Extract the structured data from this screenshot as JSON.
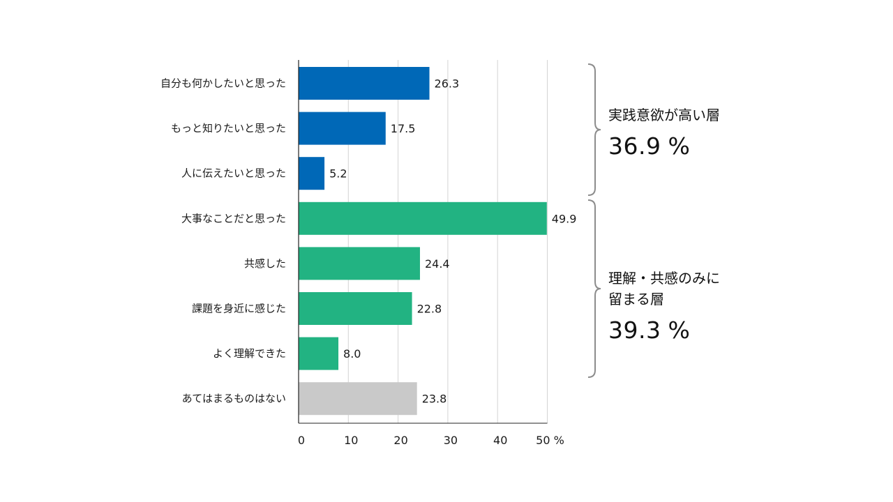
{
  "chart_data": {
    "type": "bar",
    "orientation": "horizontal",
    "categories": [
      "自分も何かしたいと思った",
      "もっと知りたいと思った",
      "人に伝えたいと思った",
      "大事なことだと思った",
      "共感した",
      "課題を身近に感じた",
      "よく理解できた",
      "あてはまるものはない"
    ],
    "values": [
      26.3,
      17.5,
      5.2,
      49.9,
      24.4,
      22.8,
      8.0,
      23.8
    ],
    "value_labels": [
      "26.3",
      "17.5",
      "5.2",
      "49.9",
      "24.4",
      "22.8",
      "8.0",
      "23.8"
    ],
    "bar_colors": [
      "#0068b7",
      "#0068b7",
      "#0068b7",
      "#22b382",
      "#22b382",
      "#22b382",
      "#22b382",
      "#c9c9c9"
    ],
    "xlim": [
      0,
      50
    ],
    "xticks": [
      0,
      10,
      20,
      30,
      40,
      50
    ],
    "xtick_labels": [
      "0",
      "10",
      "20",
      "30",
      "40",
      "50 %"
    ],
    "grid": "vertical",
    "groups": [
      {
        "label_lines": [
          "実践意欲が高い層"
        ],
        "value": "36.9",
        "unit": "%",
        "first_index": 0,
        "last_index": 2
      },
      {
        "label_lines": [
          "理解・共感のみに",
          "留まる層"
        ],
        "value": "39.3",
        "unit": "%",
        "first_index": 3,
        "last_index": 6
      }
    ]
  },
  "colors": {
    "practice": "#0068b7",
    "understanding": "#22b382",
    "none": "#c9c9c9",
    "grid": "#d4d4d4",
    "axis": "#222222",
    "brace": "#8c8c8c"
  }
}
